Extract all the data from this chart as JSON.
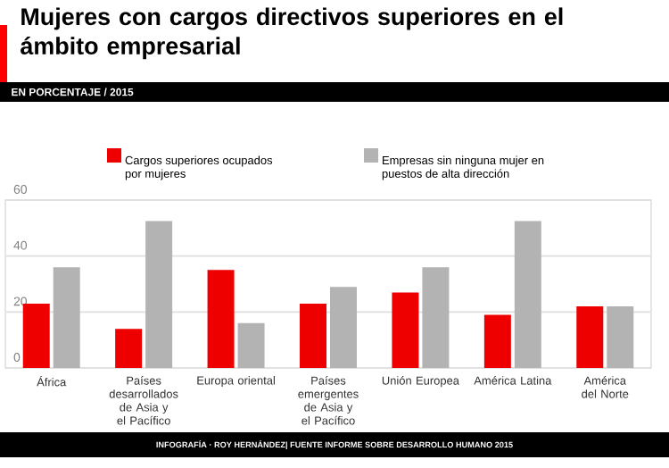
{
  "chart_data": {
    "type": "bar",
    "title": "Mujeres con cargos directivos superiores en el ámbito empresarial",
    "subtitle": "EN PORCENTAJE / 2015",
    "categories": [
      "África",
      "Países desarrollados de Asia y el Pacífico",
      "Europa oriental",
      "Países emergentes de Asia y el Pacífico",
      "Unión Europea",
      "América Latina",
      "América del Norte"
    ],
    "series": [
      {
        "name": "Cargos superiores ocupados por mujeres",
        "color": "#ee0000",
        "values": [
          23,
          14,
          35,
          23,
          27,
          19,
          22
        ]
      },
      {
        "name": "Empresas sin ninguna mujer en puestos de alta dirección",
        "color": "#b3b3b3",
        "values": [
          36,
          52.5,
          16,
          29,
          36,
          52.5,
          22
        ]
      }
    ],
    "ylim": [
      0,
      60
    ],
    "yticks": [
      0,
      20,
      40,
      60
    ],
    "grid": "y",
    "legend": "top",
    "annotations": [
      "INFOGRAFÍA · ROY HERNÁNDEZ| FUENTE INFORME SOBRE DESARROLLO HUMANO 2015"
    ]
  }
}
